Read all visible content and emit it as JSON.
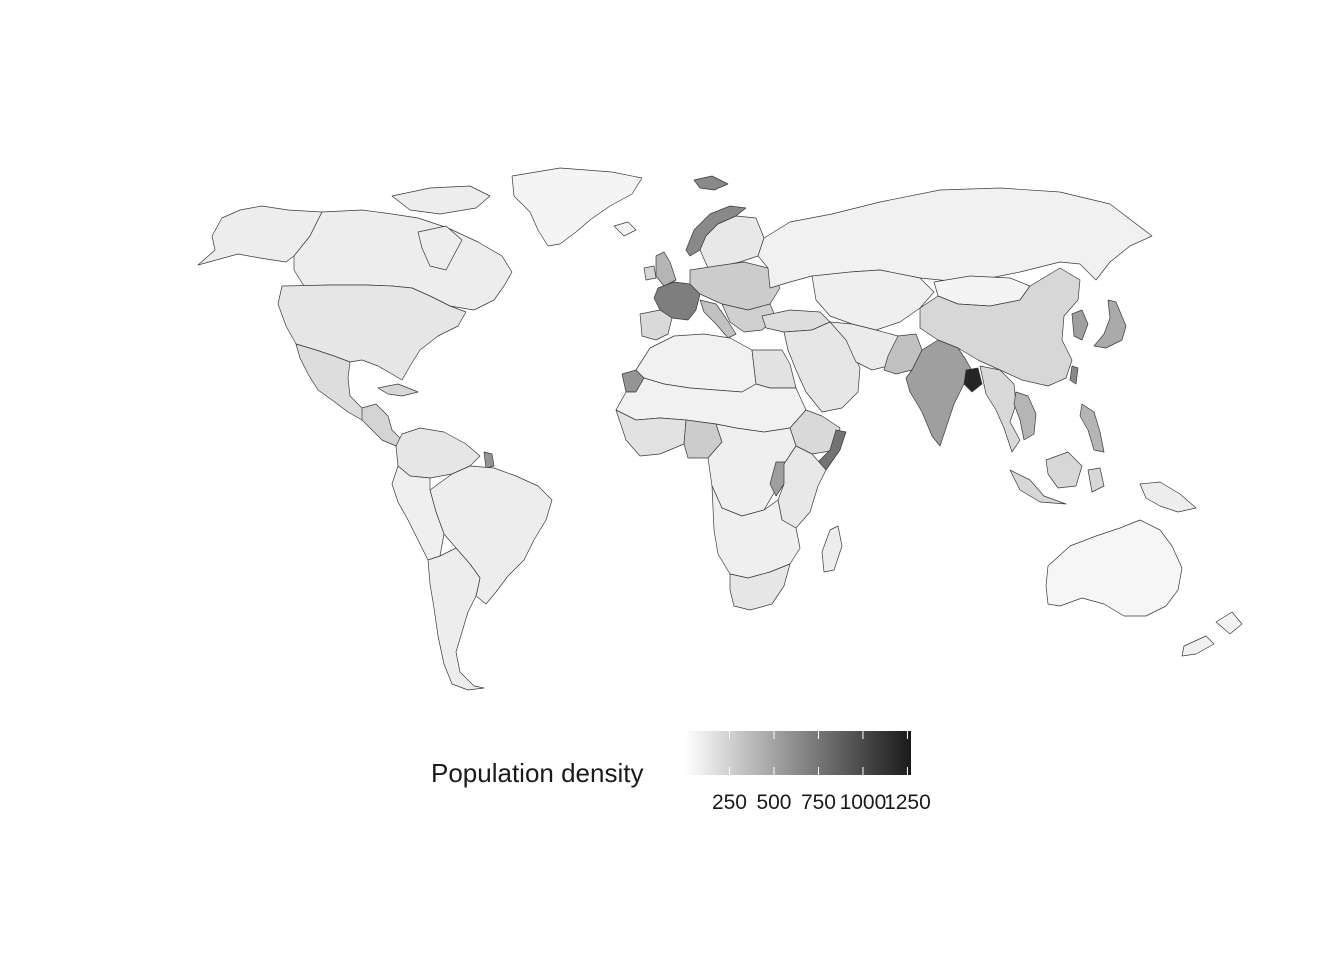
{
  "map": {
    "background": "#ffffff",
    "border_color": "#3a3a3a",
    "default_fill": "#f7f7f7",
    "regions": [
      {
        "name": "Canada",
        "level": 0.05
      },
      {
        "name": "Alaska",
        "level": 0.05
      },
      {
        "name": "Greenland",
        "level": 0.02
      },
      {
        "name": "United States",
        "level": 0.08
      },
      {
        "name": "Mexico",
        "level": 0.12
      },
      {
        "name": "Central America",
        "level": 0.16
      },
      {
        "name": "Cuba",
        "level": 0.15
      },
      {
        "name": "Colombia-Venezuela",
        "level": 0.08
      },
      {
        "name": "French Guiana",
        "level": 0.45
      },
      {
        "name": "Brazil",
        "level": 0.05
      },
      {
        "name": "Peru-Bolivia",
        "level": 0.04
      },
      {
        "name": "Chile-Argentina",
        "level": 0.05
      },
      {
        "name": "Iceland",
        "level": 0.02
      },
      {
        "name": "Svalbard",
        "level": 0.5
      },
      {
        "name": "Norway",
        "level": 0.5
      },
      {
        "name": "Sweden-Finland",
        "level": 0.07
      },
      {
        "name": "Russia",
        "level": 0.03
      },
      {
        "name": "United Kingdom",
        "level": 0.3
      },
      {
        "name": "Ireland",
        "level": 0.15
      },
      {
        "name": "France",
        "level": 0.55
      },
      {
        "name": "Iberia",
        "level": 0.14
      },
      {
        "name": "Central Europe",
        "level": 0.2
      },
      {
        "name": "Italy",
        "level": 0.25
      },
      {
        "name": "Balkans",
        "level": 0.18
      },
      {
        "name": "Turkey",
        "level": 0.12
      },
      {
        "name": "Kazakhstan-Central Asia",
        "level": 0.04
      },
      {
        "name": "Mongolia",
        "level": 0.02
      },
      {
        "name": "China",
        "level": 0.15
      },
      {
        "name": "Korea",
        "level": 0.4
      },
      {
        "name": "Japan",
        "level": 0.35
      },
      {
        "name": "Middle East",
        "level": 0.08
      },
      {
        "name": "Iran-Afghanistan",
        "level": 0.06
      },
      {
        "name": "Pakistan",
        "level": 0.25
      },
      {
        "name": "India",
        "level": 0.4
      },
      {
        "name": "Bangladesh",
        "level": 0.95
      },
      {
        "name": "Myanmar-Thailand",
        "level": 0.14
      },
      {
        "name": "Vietnam",
        "level": 0.3
      },
      {
        "name": "Philippines",
        "level": 0.3
      },
      {
        "name": "Taiwan",
        "level": 0.5
      },
      {
        "name": "Indonesia",
        "level": 0.15
      },
      {
        "name": "Papua New Guinea",
        "level": 0.05
      },
      {
        "name": "Australia",
        "level": 0.01
      },
      {
        "name": "New Zealand",
        "level": 0.03
      },
      {
        "name": "North Africa",
        "level": 0.03
      },
      {
        "name": "Egypt",
        "level": 0.1
      },
      {
        "name": "Western Sahara",
        "level": 0.45
      },
      {
        "name": "Sahel",
        "level": 0.03
      },
      {
        "name": "West Africa Coast",
        "level": 0.1
      },
      {
        "name": "Nigeria",
        "level": 0.2
      },
      {
        "name": "Central Africa",
        "level": 0.04
      },
      {
        "name": "Ethiopia",
        "level": 0.14
      },
      {
        "name": "Somalia",
        "level": 0.6
      },
      {
        "name": "Kenya-Tanzania",
        "level": 0.07
      },
      {
        "name": "Uganda-Rwanda",
        "level": 0.4
      },
      {
        "name": "Southern Africa",
        "level": 0.04
      },
      {
        "name": "South Africa",
        "level": 0.08
      },
      {
        "name": "Madagascar",
        "level": 0.05
      }
    ]
  },
  "legend": {
    "title": "Population density",
    "ticks": [
      {
        "value": 250,
        "label": "250"
      },
      {
        "value": 500,
        "label": "500"
      },
      {
        "value": 750,
        "label": "750"
      },
      {
        "value": 1000,
        "label": "1000"
      },
      {
        "value": 1250,
        "label": "1250"
      }
    ],
    "min": 0,
    "max": 1270,
    "low_color": "#ffffff",
    "high_color": "#1a1a1a"
  }
}
